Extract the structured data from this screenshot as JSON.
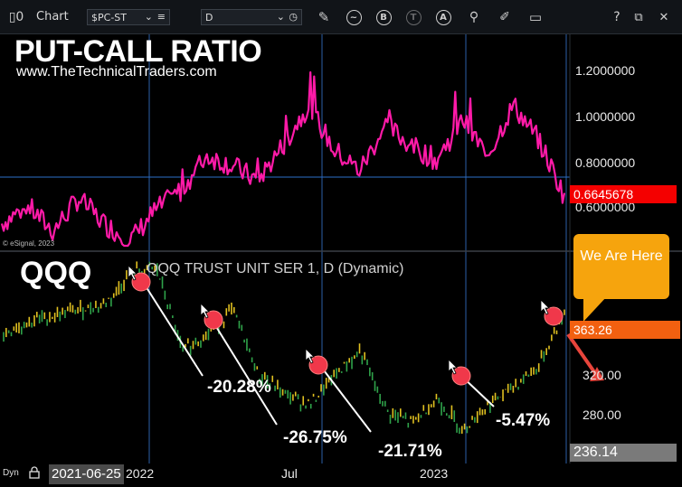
{
  "toolbar": {
    "chart_label": "Chart",
    "symbol": "$PC-ST",
    "interval": "D",
    "help": "?"
  },
  "overlay": {
    "title": "PUT-CALL RATIO",
    "url": "www.TheTechnicalTraders.com",
    "copyright": "© eSignal, 2023",
    "qqq_label": "QQQ",
    "qqq_desc": "QQQ TRUST UNIT SER 1, D (Dynamic)",
    "callout": "We Are Here",
    "bottom_mode": "Dyn",
    "bottom_date": "2021-06-25",
    "colors": {
      "pcr_line": "#ff1aa8",
      "qqq_up": "#e0c020",
      "qqq_down": "#2fa34a",
      "marker": "#f0384a",
      "callout": "#f6a40d",
      "vline": "#2b5fa8"
    }
  },
  "chart_data": [
    {
      "type": "line",
      "title": "PUT-CALL RATIO",
      "series": [
        {
          "name": "$PC-ST",
          "x": [
            "2021-06",
            "2021-07",
            "2021-08",
            "2021-09",
            "2021-10",
            "2021-11",
            "2021-12",
            "2022-01",
            "2022-02",
            "2022-03",
            "2022-04",
            "2022-05",
            "2022-06",
            "2022-07",
            "2022-08",
            "2022-09",
            "2022-10",
            "2022-11",
            "2022-12",
            "2023-01",
            "2023-02",
            "2023-03",
            "2023-04"
          ],
          "values": [
            0.55,
            0.62,
            0.52,
            0.65,
            0.55,
            0.48,
            0.6,
            0.68,
            0.82,
            0.78,
            0.72,
            0.86,
            1.02,
            0.84,
            0.76,
            0.94,
            0.86,
            0.8,
            0.96,
            0.82,
            1.02,
            0.88,
            0.66
          ]
        }
      ],
      "y_ticks": [
        "1.2000000",
        "1.0000000",
        "0.8000000",
        "0.6000000"
      ],
      "last_value_label": "0.6645678",
      "ylim": [
        0.44,
        1.3
      ]
    },
    {
      "type": "line",
      "title": "QQQ TRUST UNIT SER 1, D (Dynamic)",
      "series": [
        {
          "name": "QQQ",
          "x": [
            "2021-06",
            "2021-07",
            "2021-08",
            "2021-09",
            "2021-10",
            "2021-11",
            "2021-12",
            "2022-01",
            "2022-02",
            "2022-03",
            "2022-04",
            "2022-05",
            "2022-06",
            "2022-07",
            "2022-08",
            "2022-09",
            "2022-10",
            "2022-11",
            "2022-12",
            "2023-01",
            "2023-02",
            "2023-03",
            "2023-04"
          ],
          "values": [
            345,
            355,
            360,
            365,
            370,
            395,
            400,
            330,
            345,
            365,
            310,
            295,
            285,
            310,
            330,
            280,
            270,
            290,
            265,
            285,
            300,
            318,
            363
          ]
        }
      ],
      "y_ticks": [
        "320.00",
        "280.00"
      ],
      "last_price_label": "363.26",
      "low_label": "236.14",
      "ylim": [
        236,
        410
      ],
      "annotations": [
        "-20.28%",
        "-26.75%",
        "-21.71%",
        "-5.47%"
      ],
      "x_ticks": [
        "2022",
        "Jul",
        "2023"
      ]
    }
  ]
}
